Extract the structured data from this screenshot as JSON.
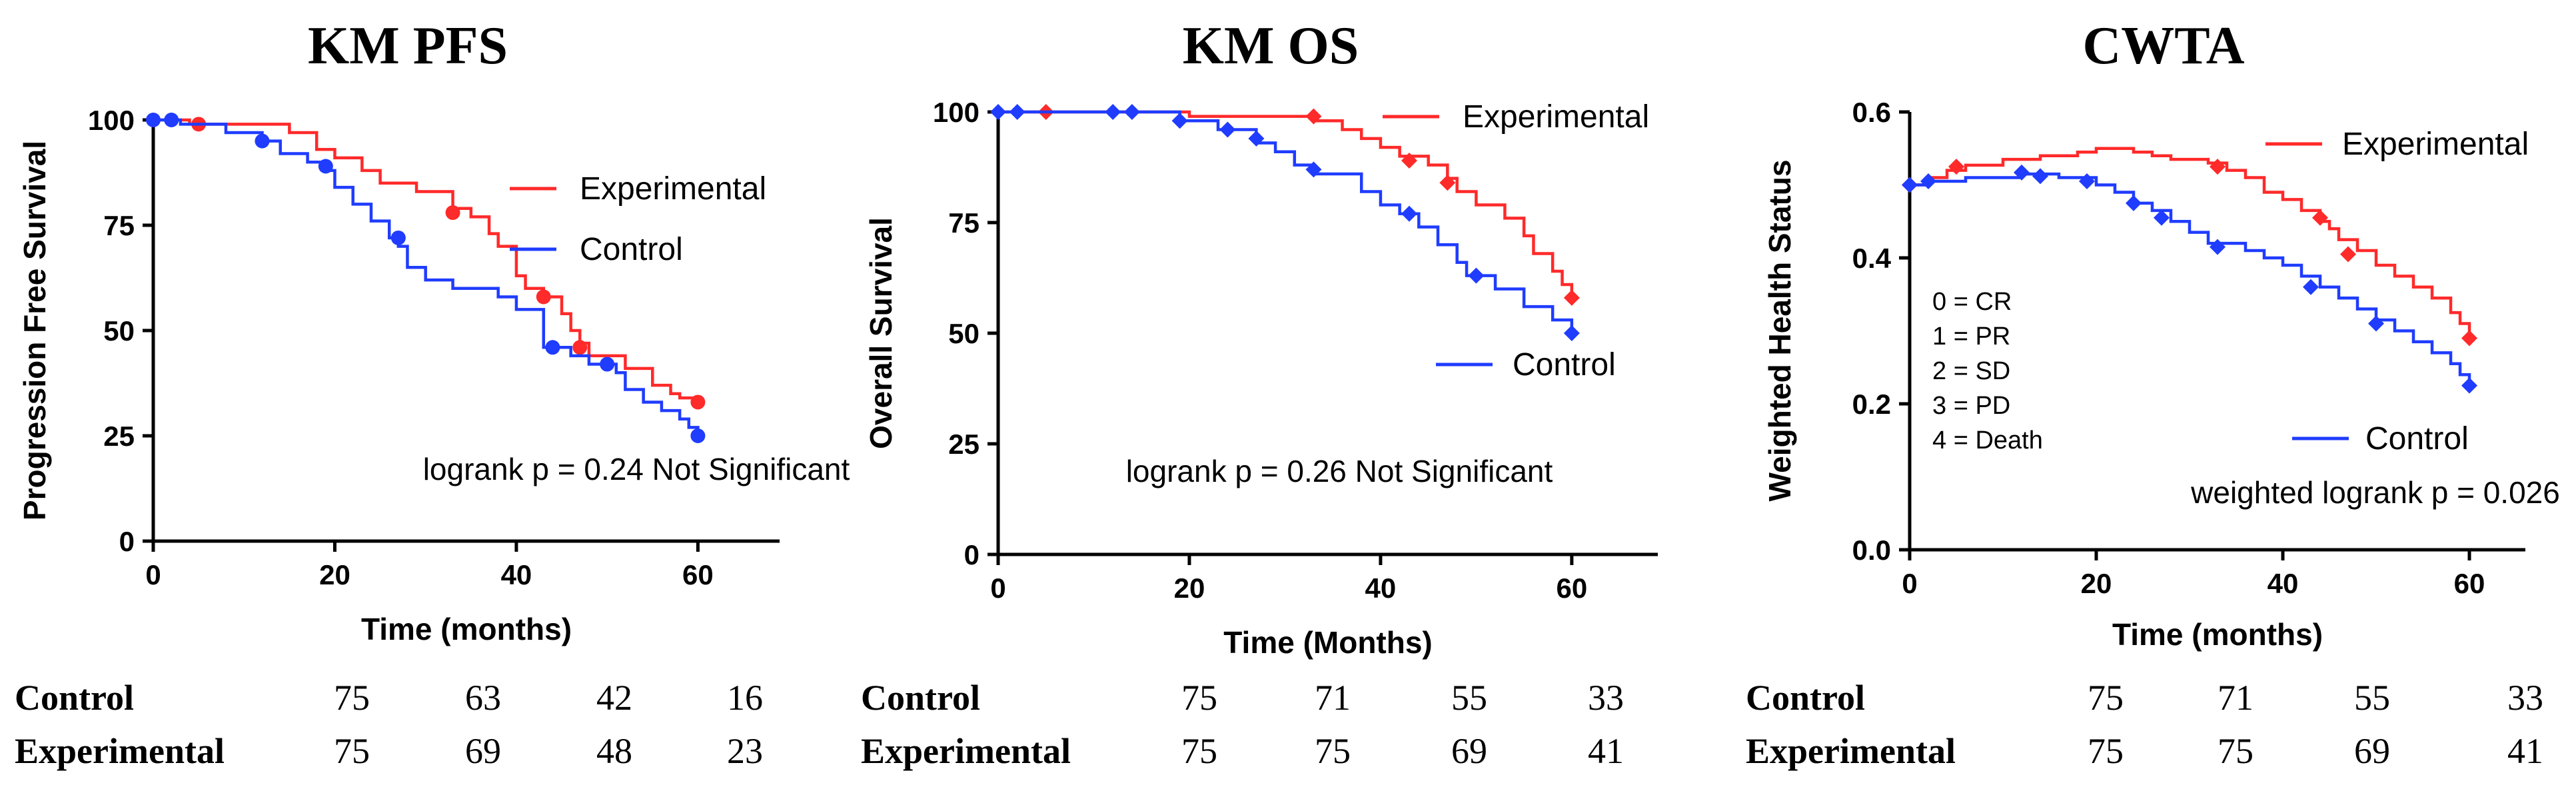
{
  "colors": {
    "experimental": "#ff2a2a",
    "control": "#1f3cff",
    "axis": "#000000"
  },
  "chart_data": [
    {
      "type": "line",
      "title": "KM PFS",
      "xlabel": "Time (months)",
      "ylabel": "Progression Free Survival",
      "xlim": [
        0,
        69
      ],
      "ylim": [
        0,
        100
      ],
      "xticks": [
        0,
        20,
        40,
        60
      ],
      "xtick_labels": [
        "0",
        "20",
        "40",
        "60"
      ],
      "yticks": [
        0,
        25,
        50,
        75,
        100
      ],
      "ytick_labels": [
        "0",
        "25",
        "50",
        "75",
        "100"
      ],
      "legend": [
        "Experimental",
        "Control"
      ],
      "annotation": "logrank p = 0.24 Not Significant",
      "series": [
        {
          "name": "Experimental",
          "step": [
            [
              0,
              100
            ],
            [
              4,
              99
            ],
            [
              15,
              97
            ],
            [
              18,
              93
            ],
            [
              20,
              91
            ],
            [
              23,
              88
            ],
            [
              25,
              85
            ],
            [
              29,
              83
            ],
            [
              33,
              79
            ],
            [
              35,
              77
            ],
            [
              37,
              73
            ],
            [
              38,
              70
            ],
            [
              40,
              63
            ],
            [
              41,
              60
            ],
            [
              43,
              58
            ],
            [
              45,
              54
            ],
            [
              46,
              50
            ],
            [
              47,
              47
            ],
            [
              48,
              44
            ],
            [
              52,
              41
            ],
            [
              55,
              37
            ],
            [
              57,
              35
            ],
            [
              58,
              34
            ],
            [
              60,
              33
            ]
          ],
          "censored": [
            [
              5,
              99
            ],
            [
              33,
              78
            ],
            [
              43,
              58
            ],
            [
              47,
              46
            ],
            [
              60,
              33
            ]
          ]
        },
        {
          "name": "Control",
          "step": [
            [
              0,
              100
            ],
            [
              3,
              99
            ],
            [
              8,
              97
            ],
            [
              12,
              95
            ],
            [
              14,
              92
            ],
            [
              17,
              90
            ],
            [
              19,
              88
            ],
            [
              20,
              84
            ],
            [
              22,
              80
            ],
            [
              24,
              76
            ],
            [
              26,
              72
            ],
            [
              27,
              70
            ],
            [
              28,
              65
            ],
            [
              30,
              62
            ],
            [
              33,
              60
            ],
            [
              38,
              58
            ],
            [
              40,
              55
            ],
            [
              43,
              46
            ],
            [
              46,
              44
            ],
            [
              48,
              42
            ],
            [
              51,
              40
            ],
            [
              52,
              36
            ],
            [
              54,
              33
            ],
            [
              56,
              31
            ],
            [
              58,
              29
            ],
            [
              59,
              27
            ],
            [
              60,
              25
            ]
          ],
          "censored": [
            [
              0,
              100
            ],
            [
              2,
              100
            ],
            [
              12,
              95
            ],
            [
              19,
              89
            ],
            [
              27,
              72
            ],
            [
              44,
              46
            ],
            [
              50,
              42
            ],
            [
              60,
              25
            ]
          ]
        }
      ],
      "risk_table": {
        "rows": [
          {
            "label": "Control",
            "values": [
              "75",
              "63",
              "42",
              "16"
            ]
          },
          {
            "label": "Experimental",
            "values": [
              "75",
              "69",
              "48",
              "23"
            ]
          }
        ]
      }
    },
    {
      "type": "line",
      "title": "KM OS",
      "xlabel": "Time (Months)",
      "ylabel": "Overall Survival",
      "xlim": [
        0,
        69
      ],
      "ylim": [
        0,
        100
      ],
      "xticks": [
        0,
        20,
        40,
        60
      ],
      "xtick_labels": [
        "0",
        "20",
        "40",
        "60"
      ],
      "yticks": [
        0,
        25,
        50,
        75,
        100
      ],
      "ytick_labels": [
        "0",
        "25",
        "50",
        "75",
        "100"
      ],
      "legend": [
        "Experimental",
        "Control"
      ],
      "annotation": "logrank p = 0.26 Not Significant",
      "series": [
        {
          "name": "Experimental",
          "step": [
            [
              0,
              100
            ],
            [
              20,
              99
            ],
            [
              33,
              98
            ],
            [
              36,
              96
            ],
            [
              38,
              94
            ],
            [
              40,
              92
            ],
            [
              42,
              90
            ],
            [
              45,
              88
            ],
            [
              47,
              85
            ],
            [
              48,
              82
            ],
            [
              50,
              79
            ],
            [
              53,
              76
            ],
            [
              55,
              72
            ],
            [
              56,
              68
            ],
            [
              58,
              64
            ],
            [
              59,
              61
            ],
            [
              60,
              57
            ]
          ],
          "censored": [
            [
              5,
              100
            ],
            [
              33,
              99
            ],
            [
              43,
              89
            ],
            [
              47,
              84
            ],
            [
              60,
              58
            ]
          ]
        },
        {
          "name": "Control",
          "step": [
            [
              0,
              100
            ],
            [
              19,
              98
            ],
            [
              23,
              96
            ],
            [
              27,
              93
            ],
            [
              29,
              91
            ],
            [
              31,
              88
            ],
            [
              33,
              86
            ],
            [
              38,
              82
            ],
            [
              40,
              79
            ],
            [
              42,
              77
            ],
            [
              44,
              74
            ],
            [
              46,
              70
            ],
            [
              48,
              66
            ],
            [
              49,
              63
            ],
            [
              52,
              60
            ],
            [
              55,
              56
            ],
            [
              58,
              53
            ],
            [
              60,
              50
            ]
          ],
          "censored": [
            [
              0,
              100
            ],
            [
              2,
              100
            ],
            [
              12,
              100
            ],
            [
              14,
              100
            ],
            [
              19,
              98
            ],
            [
              24,
              96
            ],
            [
              27,
              94
            ],
            [
              33,
              87
            ],
            [
              43,
              77
            ],
            [
              50,
              63
            ],
            [
              60,
              50
            ]
          ]
        }
      ],
      "risk_table": {
        "rows": [
          {
            "label": "Control",
            "values": [
              "75",
              "71",
              "55",
              "33"
            ]
          },
          {
            "label": "Experimental",
            "values": [
              "75",
              "75",
              "69",
              "41"
            ]
          }
        ]
      }
    },
    {
      "type": "line",
      "title": "CWTA",
      "xlabel": "Time (months)",
      "ylabel": "Weighted Health Status",
      "xlim": [
        0,
        66
      ],
      "ylim": [
        0,
        0.6
      ],
      "xticks": [
        0,
        20,
        40,
        60
      ],
      "xtick_labels": [
        "0",
        "20",
        "40",
        "60"
      ],
      "yticks": [
        0,
        0.2,
        0.4,
        0.6
      ],
      "ytick_labels": [
        "0.0",
        "0.2",
        "0.4",
        "0.6"
      ],
      "legend": [
        "Experimental",
        "Control"
      ],
      "annotation": "weighted logrank p = 0.026",
      "key_lines": [
        "0 = CR",
        "1 = PR",
        "2 = SD",
        "3 = PD",
        "4 = Death"
      ],
      "series": [
        {
          "name": "Experimental",
          "step": [
            [
              0,
              0.5
            ],
            [
              2,
              0.51
            ],
            [
              4,
              0.52
            ],
            [
              6,
              0.527
            ],
            [
              10,
              0.535
            ],
            [
              14,
              0.54
            ],
            [
              18,
              0.545
            ],
            [
              20,
              0.55
            ],
            [
              24,
              0.545
            ],
            [
              26,
              0.54
            ],
            [
              28,
              0.535
            ],
            [
              32,
              0.53
            ],
            [
              34,
              0.52
            ],
            [
              36,
              0.51
            ],
            [
              38,
              0.49
            ],
            [
              40,
              0.48
            ],
            [
              42,
              0.465
            ],
            [
              44,
              0.45
            ],
            [
              45,
              0.44
            ],
            [
              46,
              0.425
            ],
            [
              48,
              0.41
            ],
            [
              50,
              0.39
            ],
            [
              52,
              0.375
            ],
            [
              54,
              0.36
            ],
            [
              56,
              0.345
            ],
            [
              58,
              0.325
            ],
            [
              59,
              0.31
            ],
            [
              60,
              0.29
            ]
          ],
          "censored": [
            [
              0,
              0.5
            ],
            [
              5,
              0.525
            ],
            [
              33,
              0.525
            ],
            [
              44,
              0.455
            ],
            [
              47,
              0.405
            ],
            [
              60,
              0.29
            ]
          ]
        },
        {
          "name": "Control",
          "step": [
            [
              0,
              0.5
            ],
            [
              2,
              0.505
            ],
            [
              6,
              0.51
            ],
            [
              12,
              0.515
            ],
            [
              16,
              0.51
            ],
            [
              20,
              0.5
            ],
            [
              22,
              0.49
            ],
            [
              24,
              0.475
            ],
            [
              26,
              0.465
            ],
            [
              28,
              0.45
            ],
            [
              30,
              0.435
            ],
            [
              32,
              0.42
            ],
            [
              36,
              0.41
            ],
            [
              38,
              0.4
            ],
            [
              40,
              0.39
            ],
            [
              42,
              0.375
            ],
            [
              44,
              0.36
            ],
            [
              46,
              0.345
            ],
            [
              48,
              0.33
            ],
            [
              50,
              0.315
            ],
            [
              52,
              0.3
            ],
            [
              54,
              0.285
            ],
            [
              56,
              0.27
            ],
            [
              58,
              0.255
            ],
            [
              59,
              0.24
            ],
            [
              60,
              0.225
            ]
          ],
          "censored": [
            [
              0,
              0.5
            ],
            [
              2,
              0.505
            ],
            [
              12,
              0.517
            ],
            [
              14,
              0.512
            ],
            [
              19,
              0.505
            ],
            [
              24,
              0.475
            ],
            [
              27,
              0.455
            ],
            [
              33,
              0.415
            ],
            [
              43,
              0.36
            ],
            [
              50,
              0.31
            ],
            [
              60,
              0.225
            ]
          ]
        }
      ],
      "risk_table": {
        "rows": [
          {
            "label": "Control",
            "values": [
              "75",
              "71",
              "55",
              "33"
            ]
          },
          {
            "label": "Experimental",
            "values": [
              "75",
              "75",
              "69",
              "41"
            ]
          }
        ]
      }
    }
  ]
}
